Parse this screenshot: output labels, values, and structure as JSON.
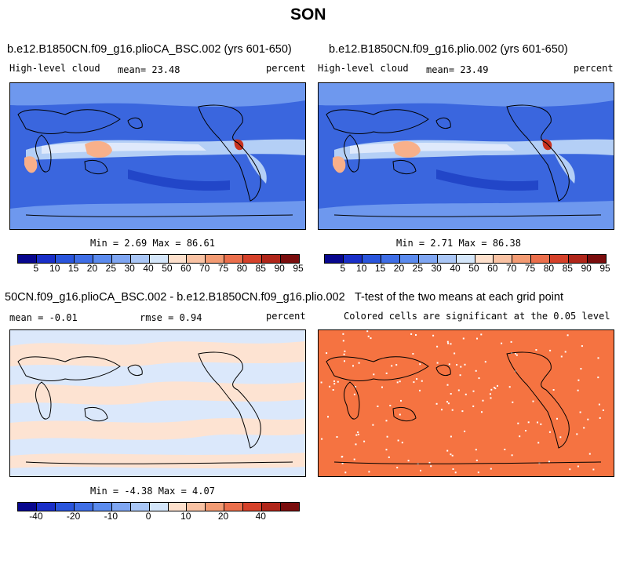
{
  "page_title": "SON",
  "panels": [
    {
      "case": "b.e12.B1850CN.f09_g16.plioCA_BSC.002 (yrs 601-650)",
      "var": "High-level cloud",
      "mean": "mean=  23.48",
      "units": "percent",
      "minmax": "Min =   2.69 Max =  86.61"
    },
    {
      "case": "b.e12.B1850CN.f09_g16.plio.002 (yrs 601-650)",
      "var": "High-level cloud",
      "mean": "mean=  23.49",
      "units": "percent",
      "minmax": "Min =   2.71 Max =  86.38"
    },
    {
      "case": "50CN.f09_g16.plioCA_BSC.002 - b.e12.B1850CN.f09_g16.plio.002",
      "mean": "mean =  -0.01",
      "rmse": "rmse =   0.94",
      "units": "percent",
      "minmax": "Min =  -4.38 Max =   4.07"
    },
    {
      "case": "T-test of the two means at each grid point",
      "note": "Colored cells are significant at the 0.05 level"
    }
  ],
  "colorbar_abs": {
    "colors": [
      "#08078e",
      "#1a2fc8",
      "#2a55dc",
      "#3f6ee6",
      "#5b8bee",
      "#7fa6f2",
      "#a9c6f6",
      "#d4e6fa",
      "#fde0cc",
      "#f9c2a3",
      "#f39b73",
      "#eb6f4c",
      "#d5412a",
      "#b0261a",
      "#7a0d0d"
    ],
    "labels": [
      "5",
      "10",
      "15",
      "20",
      "25",
      "30",
      "40",
      "50",
      "60",
      "70",
      "75",
      "80",
      "85",
      "90",
      "95"
    ]
  },
  "colorbar_diff": {
    "colors": [
      "#08078e",
      "#1a2fc8",
      "#2a55dc",
      "#3f6ee6",
      "#5b8bee",
      "#7fa6f2",
      "#a9c6f6",
      "#d4e6fa",
      "#fde0cc",
      "#f9c2a3",
      "#f39b73",
      "#eb6f4c",
      "#d5412a",
      "#b0261a",
      "#7a0d0d"
    ],
    "labels": [
      "-40",
      "-20",
      "-10",
      "0",
      "10",
      "20",
      "40"
    ]
  },
  "map_colors": {
    "abs_base": "#3a66de",
    "abs_deep": "#2246c8",
    "abs_mid": "#6e98ee",
    "abs_light": "#b4cff6",
    "abs_pale": "#dfe9fb",
    "abs_warm": "#f8b08a",
    "abs_hot": "#c8321f",
    "diff_pos": "#fde3d2",
    "diff_neg": "#dbe8fb",
    "ttest": "#f57341"
  }
}
